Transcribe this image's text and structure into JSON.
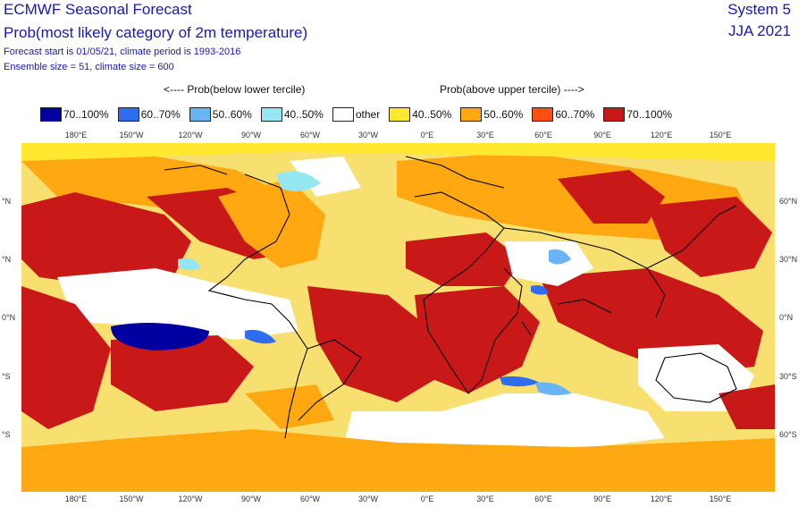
{
  "header": {
    "title": "ECMWF Seasonal Forecast",
    "subtitle": "Prob(most likely category of 2m temperature)",
    "forecast_line": "Forecast start is 01/05/21, climate period is 1993-2016",
    "ensemble_line": "Ensemble size = 51, climate size = 600",
    "system": "System 5",
    "season": "JJA 2021"
  },
  "legend": {
    "below_header": "<---- Prob(below lower tercile)",
    "above_header": "Prob(above upper tercile) ---->",
    "items": [
      {
        "label": "70..100%",
        "color": "#0000a0"
      },
      {
        "label": "60..70%",
        "color": "#2e6df0"
      },
      {
        "label": "50..60%",
        "color": "#69b4f5"
      },
      {
        "label": "40..50%",
        "color": "#96e6f2"
      },
      {
        "label": "other",
        "color": "#ffffff"
      },
      {
        "label": "40..50%",
        "color": "#ffe830"
      },
      {
        "label": "50..60%",
        "color": "#ffa812"
      },
      {
        "label": "60..70%",
        "color": "#ff5010"
      },
      {
        "label": "70..100%",
        "color": "#c81818"
      }
    ]
  },
  "axes": {
    "longitudes": [
      "180°E",
      "150°W",
      "120°W",
      "90°W",
      "60°W",
      "30°W",
      "0°E",
      "30°E",
      "60°E",
      "90°E",
      "120°E",
      "150°E"
    ],
    "latitudes_right": [
      "60°N",
      "30°N",
      "0°N",
      "30°S",
      "60°S"
    ],
    "latitudes_left": [
      "°N",
      "°N",
      "0°N",
      "°S",
      "°S"
    ]
  },
  "map": {
    "background": "#f8e070",
    "coast_color": "#000000"
  }
}
